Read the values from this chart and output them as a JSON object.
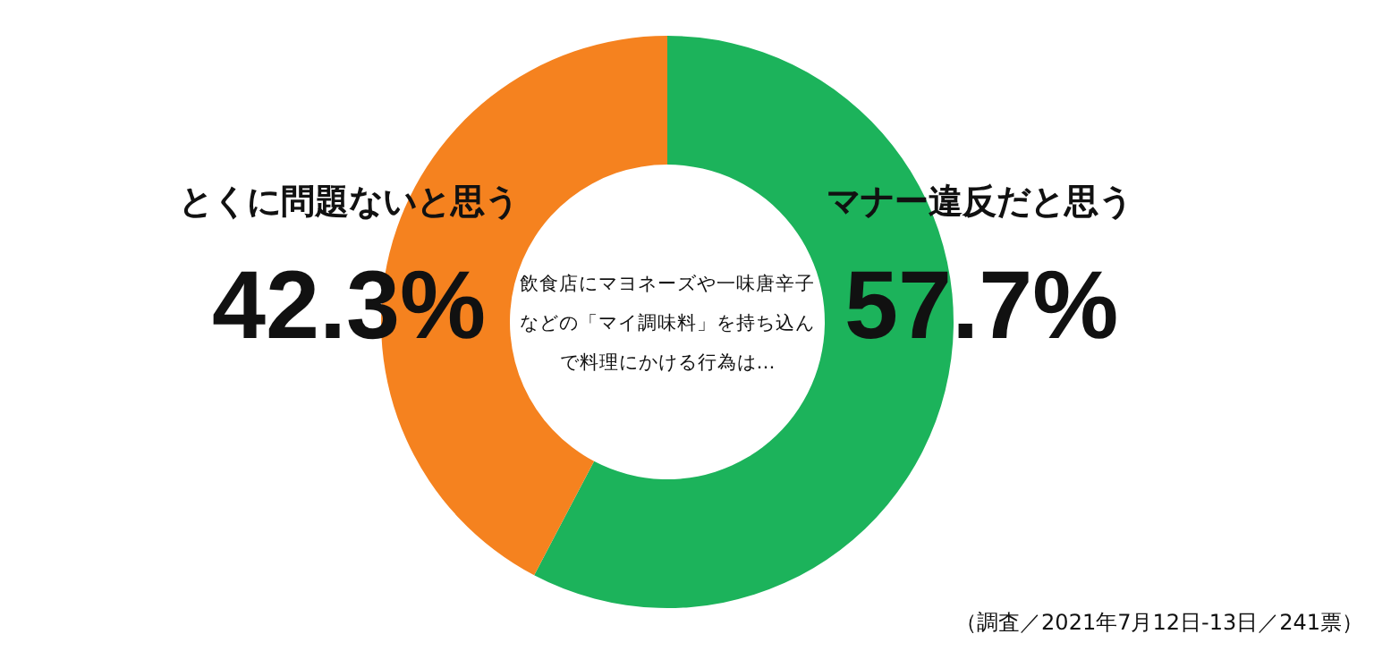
{
  "chart_data": {
    "type": "donut",
    "title": "飲食店にマヨネーズや一味唐辛子などの「マイ調味料」を持ち込んで料理にかける行為は…",
    "categories": [
      "マナー違反だと思う",
      "とくに問題ないと思う"
    ],
    "values": [
      57.7,
      42.3
    ],
    "colors": [
      "#1cb35b",
      "#f5821f"
    ],
    "value_labels": [
      "57.7%",
      "42.3%"
    ],
    "annotations": [
      "（調査／2021年7月12日-13日／241票）"
    ]
  }
}
